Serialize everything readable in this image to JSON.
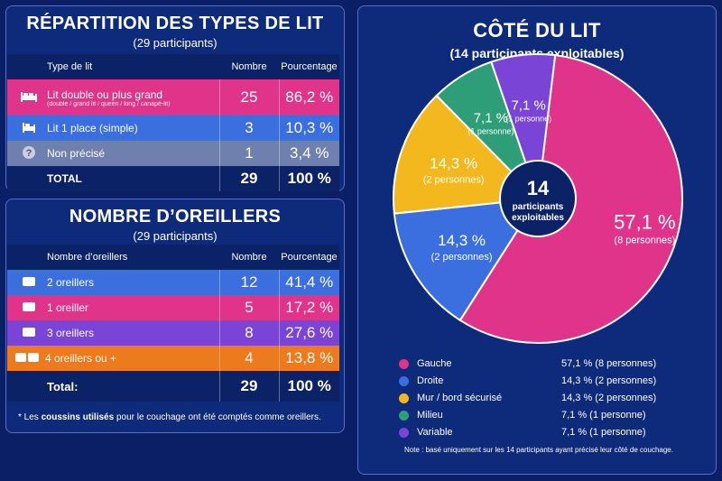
{
  "bed": {
    "title": "RÉPARTITION DES TYPES DE LIT",
    "subtitle": "(29 participants)",
    "headers": [
      "Type de lit",
      "Nombre",
      "Pourcentage"
    ],
    "rows": [
      {
        "label": "Lit double ou plus grand",
        "sub": "(double / grand lit / queen / king / canapé-lit)",
        "count": "25",
        "pct": "86,2 %",
        "color": "#e0338a",
        "icon": "double-bed-icon"
      },
      {
        "label": "Lit 1 place (simple)",
        "sub": "",
        "count": "3",
        "pct": "10,3 %",
        "color": "#3b6fe0",
        "icon": "single-bed-icon"
      },
      {
        "label": "Non précisé",
        "sub": "",
        "count": "1",
        "pct": "3,4 %",
        "color": "#6f7fae",
        "icon": "question-icon"
      }
    ],
    "total": {
      "label": "TOTAL",
      "count": "29",
      "pct": "100 %"
    }
  },
  "pillows": {
    "title": "NOMBRE D’OREILLERS",
    "subtitle": "(29 participants)",
    "headers": [
      "Nombre d’oreillers",
      "Nombre",
      "Pourcentage"
    ],
    "rows": [
      {
        "label": "2 oreillers",
        "count": "12",
        "pct": "41,4 %",
        "color": "#3b6fe0",
        "icon": "pillow-icon"
      },
      {
        "label": "1 oreiller",
        "count": "5",
        "pct": "17,2 %",
        "color": "#e0338a",
        "icon": "pillow-icon"
      },
      {
        "label": "3 oreillers",
        "count": "8",
        "pct": "27,6 %",
        "color": "#7a45d6",
        "icon": "pillow-icon"
      },
      {
        "label": "4 oreillers ou +",
        "count": "4",
        "pct": "13,8 %",
        "color": "#ee7a1e",
        "icon": "pillows-icon"
      }
    ],
    "total": {
      "label": "Total:",
      "count": "29",
      "pct": "100 %"
    },
    "note_prefix": "* Les ",
    "note_bold": "coussins utilisés",
    "note_suffix": " pour le couchage ont été comptés comme oreillers."
  },
  "side": {
    "title": "CÔTÉ DU LIT",
    "subtitle": "(14 participants exploitables)",
    "center_value": "14",
    "center_label1": "participants",
    "center_label2": "exploitables",
    "note": "Note : basé uniquement sur les 14 participants ayant précisé leur côté de couchage."
  },
  "chart_data": {
    "type": "pie",
    "title": "CÔTÉ DU LIT",
    "subtitle": "(14 participants exploitables)",
    "categories": [
      "Gauche",
      "Droite",
      "Mur / bord sécurisé",
      "Milieu",
      "Variable"
    ],
    "values": [
      8,
      2,
      2,
      1,
      1
    ],
    "percent_labels": [
      "57,1 %",
      "14,3 %",
      "14,3 %",
      "7,1 %",
      "7,1 %"
    ],
    "count_labels": [
      "(8 personnes)",
      "(2 personnes)",
      "(2 personnes)",
      "(1 personne)",
      "(1 personne)"
    ],
    "legend_values": [
      "57,1 % (8 personnes)",
      "14,3 % (2 personnes)",
      "14,3 % (2 personnes)",
      "7,1 % (1 personne)",
      "7,1 % (1 personne)"
    ],
    "colors": [
      "#e0338a",
      "#3b6fe0",
      "#f2b81e",
      "#2e9e78",
      "#7a45d6"
    ],
    "legend_position": "bottom"
  }
}
